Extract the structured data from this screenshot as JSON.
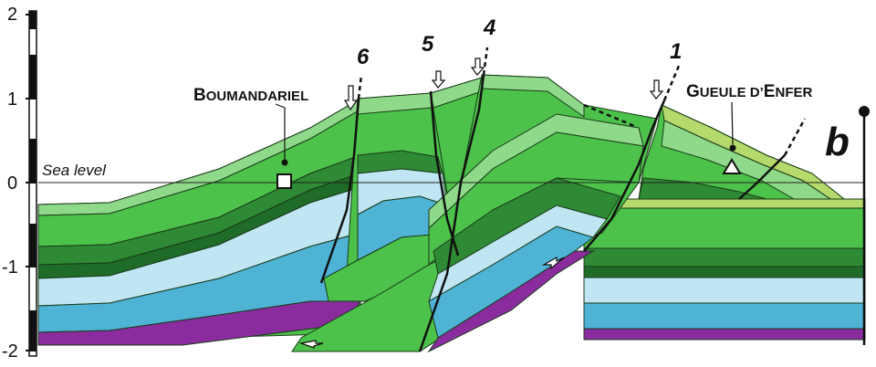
{
  "y_axis": {
    "tick_labels": [
      "2",
      "1",
      "0",
      "-1",
      "-2"
    ]
  },
  "sea_level_label": "Sea level",
  "panel_label": "b",
  "faults": [
    {
      "number": "6"
    },
    {
      "number": "5"
    },
    {
      "number": "4"
    },
    {
      "number": "1"
    }
  ],
  "localities": [
    {
      "name_big": "B",
      "name_small": "OUMANDARIEL",
      "symbol": "square"
    },
    {
      "name_big": "G",
      "name_small": "UEULE D’",
      "name_big2": "E",
      "name_small2": "NFER",
      "symbol": "triangle"
    }
  ],
  "colors": {
    "green_light": "#8fd98a",
    "green_mid": "#4cc24a",
    "green_dark": "#2e8a34",
    "green_yellow": "#b5d96a",
    "blue_light": "#bfe6f2",
    "blue_mid": "#4fb3d6",
    "purple": "#8a2c9e"
  }
}
